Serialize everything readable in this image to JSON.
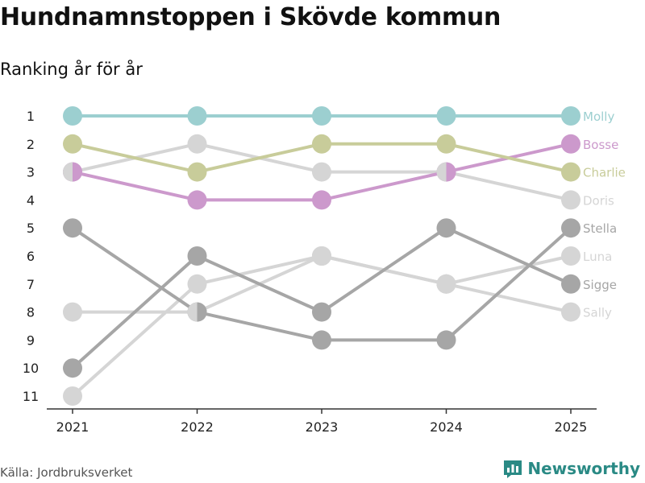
{
  "header": {
    "title": "Hundnamnstoppen i Skövde kommun",
    "subtitle": "Ranking år för år"
  },
  "footer": {
    "source": "Källa: Jordbruksverket",
    "brand": "Newsworthy",
    "brand_color": "#2a8a85"
  },
  "chart_data": {
    "type": "line",
    "title": "Hundnamnstoppen i Skövde kommun",
    "subtitle": "Ranking år för år",
    "x": [
      "2021",
      "2022",
      "2023",
      "2024",
      "2025"
    ],
    "y_ticks": [
      1,
      2,
      3,
      4,
      5,
      6,
      7,
      8,
      9,
      10,
      11
    ],
    "ylim": [
      1,
      11
    ],
    "y_inverted": true,
    "legend": "right-end labels",
    "series": [
      {
        "name": "Molly",
        "color": "#9ccfd0",
        "values": [
          1,
          1,
          1,
          1,
          1
        ]
      },
      {
        "name": "Bosse",
        "color": "#cc99cc",
        "values": [
          3,
          4,
          4,
          3,
          2
        ]
      },
      {
        "name": "Charlie",
        "color": "#c8cc9a",
        "values": [
          2,
          3,
          2,
          2,
          3
        ]
      },
      {
        "name": "Doris",
        "color": "#d5d5d5",
        "values": [
          3,
          2,
          3,
          3,
          4
        ]
      },
      {
        "name": "Stella",
        "color": "#a6a6a6",
        "values": [
          5,
          8,
          9,
          9,
          5
        ]
      },
      {
        "name": "Luna",
        "color": "#d5d5d5",
        "values": [
          11,
          7,
          6,
          7,
          6
        ]
      },
      {
        "name": "Sigge",
        "color": "#a6a6a6",
        "values": [
          10,
          6,
          8,
          5,
          7
        ]
      },
      {
        "name": "Sally",
        "color": "#d5d5d5",
        "values": [
          8,
          8,
          6,
          7,
          8
        ]
      }
    ]
  }
}
